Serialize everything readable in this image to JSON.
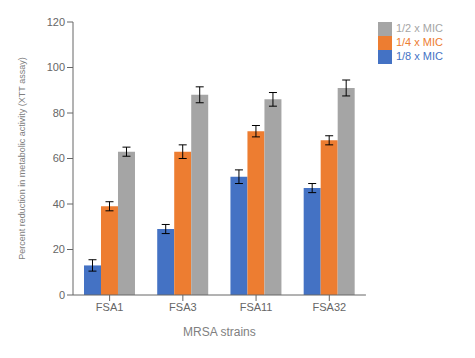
{
  "chart_data": {
    "type": "bar",
    "categories": [
      "FSA1",
      "FSA3",
      "FSA11",
      "FSA32"
    ],
    "series": [
      {
        "name": "1/8 x MIC",
        "color": "#4472C4",
        "values": [
          13,
          29,
          52,
          47
        ],
        "errors": [
          2.5,
          2,
          3,
          2
        ]
      },
      {
        "name": "1/4 x MIC",
        "color": "#ED7D31",
        "values": [
          39,
          63,
          72,
          68
        ],
        "errors": [
          2,
          3,
          2.5,
          2
        ]
      },
      {
        "name": "1/2 x MIC",
        "color": "#A5A5A5",
        "values": [
          63,
          88,
          86,
          91
        ],
        "errors": [
          2,
          3.5,
          3,
          3.5
        ]
      }
    ],
    "xlabel": "MRSA strains",
    "ylabel": "Percent reduction in metabolic activity (XTT assay)",
    "ylim": [
      0,
      120
    ],
    "yticks": [
      0,
      20,
      40,
      60,
      80,
      100,
      120
    ],
    "grid": false,
    "legend": "upper right"
  }
}
